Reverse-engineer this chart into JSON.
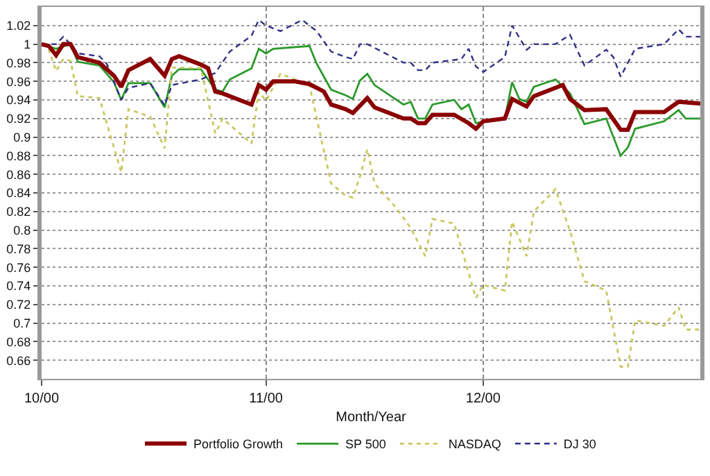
{
  "chart_data": {
    "type": "line",
    "xlabel": "Month/Year",
    "xlim": [
      "2000-10-01",
      "2000-12-31"
    ],
    "xticks": [
      {
        "value": "2000-10-01",
        "label": "10/00"
      },
      {
        "value": "2000-11-01",
        "label": "11/00"
      },
      {
        "value": "2000-12-01",
        "label": "12/00"
      }
    ],
    "ylim": [
      0.64,
      1.04
    ],
    "yticks": [
      0.66,
      0.68,
      0.7,
      0.72,
      0.74,
      0.76,
      0.78,
      0.8,
      0.82,
      0.84,
      0.86,
      0.88,
      0.9,
      0.92,
      0.94,
      0.96,
      0.98,
      1,
      1.02
    ],
    "grid": true,
    "legend": "bottom",
    "marker": "none",
    "series": [
      {
        "name": "Portfolio Growth",
        "color": "#8b0000",
        "line_style": "solid",
        "x": [
          "2000-10-01",
          "2000-10-02",
          "2000-10-03",
          "2000-10-04",
          "2000-10-05",
          "2000-10-06",
          "2000-10-09",
          "2000-10-11",
          "2000-10-12",
          "2000-10-13",
          "2000-10-16",
          "2000-10-18",
          "2000-10-19",
          "2000-10-20",
          "2000-10-23",
          "2000-10-24",
          "2000-10-25",
          "2000-10-26",
          "2000-10-30",
          "2000-10-31",
          "2000-11-01",
          "2000-11-02",
          "2000-11-05",
          "2000-11-07",
          "2000-11-09",
          "2000-11-10",
          "2000-11-12",
          "2000-11-13",
          "2000-11-15",
          "2000-11-16",
          "2000-11-20",
          "2000-11-21",
          "2000-11-22",
          "2000-11-23",
          "2000-11-24",
          "2000-11-27",
          "2000-11-29",
          "2000-11-30",
          "2000-12-01",
          "2000-12-04",
          "2000-12-05",
          "2000-12-07",
          "2000-12-08",
          "2000-12-12",
          "2000-12-13",
          "2000-12-15",
          "2000-12-18",
          "2000-12-20",
          "2000-12-21",
          "2000-12-22",
          "2000-12-26",
          "2000-12-28",
          "2000-12-31"
        ],
        "values": [
          1.0,
          0.998,
          0.988,
          1.0,
          1.0,
          0.986,
          0.98,
          0.966,
          0.954,
          0.972,
          0.984,
          0.966,
          0.984,
          0.987,
          0.978,
          0.974,
          0.949,
          0.947,
          0.935,
          0.956,
          0.951,
          0.96,
          0.96,
          0.957,
          0.949,
          0.935,
          0.93,
          0.926,
          0.942,
          0.932,
          0.92,
          0.92,
          0.915,
          0.915,
          0.924,
          0.924,
          0.915,
          0.909,
          0.917,
          0.92,
          0.941,
          0.933,
          0.944,
          0.956,
          0.941,
          0.929,
          0.93,
          0.908,
          0.908,
          0.927,
          0.927,
          0.938,
          0.936
        ]
      },
      {
        "name": "SP 500",
        "color": "#2a9a2a",
        "line_style": "solid",
        "x": [
          "2000-10-01",
          "2000-10-03",
          "2000-10-05",
          "2000-10-06",
          "2000-10-09",
          "2000-10-11",
          "2000-10-12",
          "2000-10-13",
          "2000-10-16",
          "2000-10-18",
          "2000-10-19",
          "2000-10-20",
          "2000-10-23",
          "2000-10-25",
          "2000-10-26",
          "2000-10-27",
          "2000-10-30",
          "2000-10-31",
          "2000-11-01",
          "2000-11-02",
          "2000-11-07",
          "2000-11-08",
          "2000-11-10",
          "2000-11-12",
          "2000-11-13",
          "2000-11-14",
          "2000-11-15",
          "2000-11-16",
          "2000-11-20",
          "2000-11-21",
          "2000-11-22",
          "2000-11-23",
          "2000-11-24",
          "2000-11-27",
          "2000-11-28",
          "2000-11-29",
          "2000-11-30",
          "2000-12-04",
          "2000-12-05",
          "2000-12-06",
          "2000-12-07",
          "2000-12-08",
          "2000-12-11",
          "2000-12-13",
          "2000-12-15",
          "2000-12-18",
          "2000-12-20",
          "2000-12-21",
          "2000-12-22",
          "2000-12-26",
          "2000-12-28",
          "2000-12-29",
          "2000-12-31"
        ],
        "values": [
          1.0,
          0.995,
          1.0,
          0.981,
          0.977,
          0.959,
          0.94,
          0.958,
          0.958,
          0.932,
          0.966,
          0.973,
          0.973,
          0.951,
          0.949,
          0.962,
          0.974,
          0.995,
          0.99,
          0.995,
          0.998,
          0.979,
          0.951,
          0.945,
          0.941,
          0.961,
          0.968,
          0.956,
          0.935,
          0.938,
          0.92,
          0.92,
          0.935,
          0.94,
          0.93,
          0.935,
          0.915,
          0.92,
          0.959,
          0.941,
          0.938,
          0.954,
          0.962,
          0.947,
          0.914,
          0.92,
          0.88,
          0.889,
          0.909,
          0.917,
          0.929,
          0.92,
          0.92
        ]
      },
      {
        "name": "NASDAQ",
        "color": "#c8c860",
        "line_style": "dotted",
        "x": [
          "2000-10-01",
          "2000-10-02",
          "2000-10-03",
          "2000-10-04",
          "2000-10-05",
          "2000-10-06",
          "2000-10-09",
          "2000-10-12",
          "2000-10-13",
          "2000-10-16",
          "2000-10-18",
          "2000-10-19",
          "2000-10-23",
          "2000-10-25",
          "2000-10-26",
          "2000-10-30",
          "2000-10-31",
          "2000-11-01",
          "2000-11-03",
          "2000-11-07",
          "2000-11-10",
          "2000-11-12",
          "2000-11-13",
          "2000-11-14",
          "2000-11-15",
          "2000-11-16",
          "2000-11-19",
          "2000-11-21",
          "2000-11-23",
          "2000-11-24",
          "2000-11-27",
          "2000-11-30",
          "2000-12-01",
          "2000-12-04",
          "2000-12-05",
          "2000-12-07",
          "2000-12-08",
          "2000-12-11",
          "2000-12-13",
          "2000-12-15",
          "2000-12-18",
          "2000-12-20",
          "2000-12-21",
          "2000-12-22",
          "2000-12-26",
          "2000-12-28",
          "2000-12-29",
          "2000-12-31"
        ],
        "values": [
          1.0,
          0.994,
          0.971,
          0.984,
          0.982,
          0.944,
          0.942,
          0.862,
          0.93,
          0.922,
          0.888,
          0.975,
          0.974,
          0.904,
          0.92,
          0.893,
          0.949,
          0.939,
          0.968,
          0.956,
          0.85,
          0.837,
          0.835,
          0.858,
          0.887,
          0.85,
          0.824,
          0.802,
          0.772,
          0.812,
          0.807,
          0.727,
          0.741,
          0.735,
          0.809,
          0.772,
          0.82,
          0.844,
          0.799,
          0.745,
          0.735,
          0.653,
          0.653,
          0.703,
          0.697,
          0.717,
          0.693,
          0.693
        ]
      },
      {
        "name": "DJ 30",
        "color": "#303088",
        "line_style": "dashed",
        "x": [
          "2000-10-01",
          "2000-10-03",
          "2000-10-04",
          "2000-10-05",
          "2000-10-06",
          "2000-10-09",
          "2000-10-10",
          "2000-10-12",
          "2000-10-13",
          "2000-10-16",
          "2000-10-18",
          "2000-10-19",
          "2000-10-23",
          "2000-10-25",
          "2000-10-27",
          "2000-10-30",
          "2000-10-31",
          "2000-11-01",
          "2000-11-03",
          "2000-11-06",
          "2000-11-08",
          "2000-11-10",
          "2000-11-12",
          "2000-11-13",
          "2000-11-14",
          "2000-11-15",
          "2000-11-20",
          "2000-11-21",
          "2000-11-22",
          "2000-11-23",
          "2000-11-24",
          "2000-11-28",
          "2000-11-29",
          "2000-11-30",
          "2000-12-01",
          "2000-12-04",
          "2000-12-05",
          "2000-12-07",
          "2000-12-08",
          "2000-12-11",
          "2000-12-13",
          "2000-12-15",
          "2000-12-18",
          "2000-12-19",
          "2000-12-20",
          "2000-12-22",
          "2000-12-26",
          "2000-12-28",
          "2000-12-29",
          "2000-12-31"
        ],
        "values": [
          1.0,
          1.0,
          1.008,
          1.0,
          0.99,
          0.987,
          0.979,
          0.94,
          0.953,
          0.958,
          0.934,
          0.956,
          0.962,
          0.969,
          0.992,
          1.009,
          1.026,
          1.02,
          1.014,
          1.026,
          1.014,
          0.992,
          0.986,
          0.984,
          1.0,
          1.0,
          0.98,
          0.98,
          0.972,
          0.972,
          0.98,
          0.984,
          0.995,
          0.976,
          0.97,
          0.986,
          1.02,
          0.994,
          1.0,
          1.0,
          1.01,
          0.977,
          0.994,
          0.986,
          0.965,
          0.995,
          1.0,
          1.016,
          1.008,
          1.008
        ]
      }
    ]
  }
}
